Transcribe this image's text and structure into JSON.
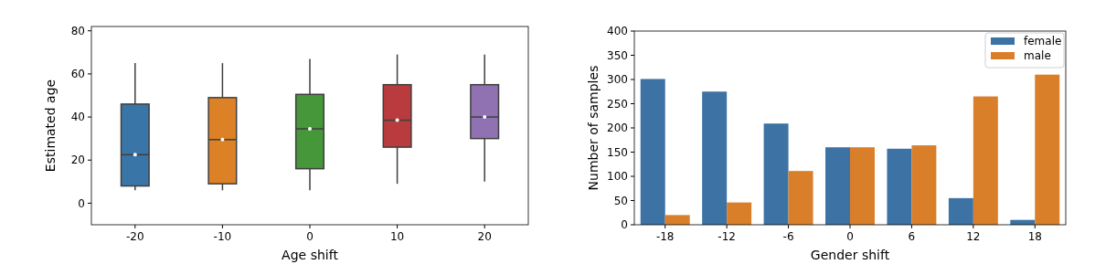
{
  "chart_data": [
    {
      "type": "box",
      "xlabel": "Age shift",
      "ylabel": "Estimated age",
      "categories": [
        "-20",
        "-10",
        "0",
        "10",
        "20"
      ],
      "colors": [
        "#3a75a8",
        "#dd8126",
        "#46963a",
        "#b93b3d",
        "#9072b2"
      ],
      "boxes": [
        {
          "low": 6,
          "q1": 8,
          "median": 22.5,
          "q3": 46,
          "high": 65
        },
        {
          "low": 6,
          "q1": 9,
          "median": 29.5,
          "q3": 49,
          "high": 65
        },
        {
          "low": 6,
          "q1": 16,
          "median": 34.5,
          "q3": 50.5,
          "high": 67
        },
        {
          "low": 9,
          "q1": 26,
          "median": 38.5,
          "q3": 55,
          "high": 69
        },
        {
          "low": 10,
          "q1": 30,
          "median": 40,
          "q3": 55,
          "high": 69
        }
      ],
      "ylim": [
        -10,
        82
      ],
      "yticks": [
        0,
        20,
        40,
        60,
        80
      ]
    },
    {
      "type": "bar",
      "xlabel": "Gender shift",
      "ylabel": "Number of samples",
      "categories": [
        "-18",
        "-12",
        "-6",
        "0",
        "6",
        "12",
        "18"
      ],
      "series": [
        {
          "name": "female",
          "color": "#3d72a4",
          "values": [
            301,
            275,
            209,
            160,
            157,
            55,
            10
          ]
        },
        {
          "name": "male",
          "color": "#d97f2a",
          "values": [
            20,
            46,
            111,
            160,
            164,
            265,
            310
          ]
        }
      ],
      "ylim": [
        0,
        400
      ],
      "yticks": [
        0,
        50,
        100,
        150,
        200,
        250,
        300,
        350,
        400
      ],
      "legend": "top right"
    }
  ]
}
